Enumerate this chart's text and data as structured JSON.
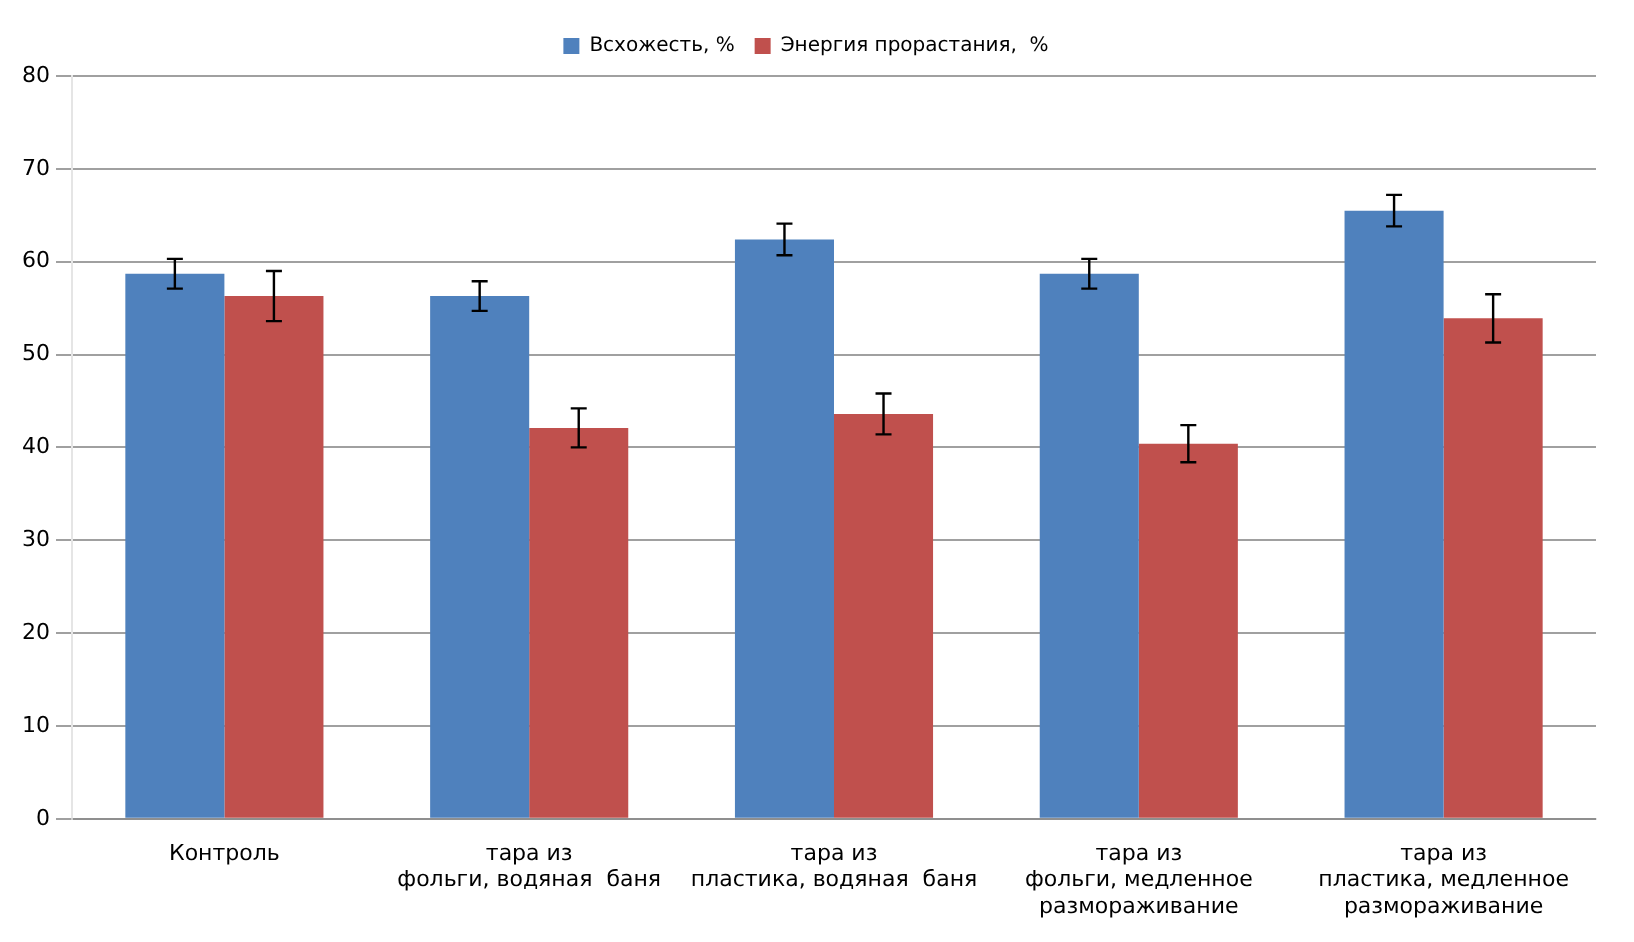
{
  "chart_data": {
    "type": "bar",
    "categories": [
      "Контроль",
      "тара из\nфольги, водяная  баня",
      "тара из\nпластика, водяная  баня",
      "тара из\nфольги, медленное\nразмораживание",
      "тара из\nпластика, медленное\nразмораживание"
    ],
    "series": [
      {
        "name": "Всхожесть, %",
        "color": "#4f81bd",
        "values": [
          58.7,
          56.3,
          62.4,
          58.7,
          65.5
        ],
        "errors": [
          1.6,
          1.6,
          1.7,
          1.6,
          1.7
        ]
      },
      {
        "name": "Энергия прорастания,  %",
        "color": "#c0504d",
        "values": [
          56.3,
          42.1,
          43.6,
          40.4,
          53.9
        ],
        "errors": [
          2.7,
          2.1,
          2.2,
          2.0,
          2.6
        ]
      }
    ],
    "ylim": [
      0,
      80
    ],
    "yticks": [
      0,
      10,
      20,
      30,
      40,
      50,
      60,
      70,
      80
    ],
    "grid": "y",
    "legend": "top"
  }
}
